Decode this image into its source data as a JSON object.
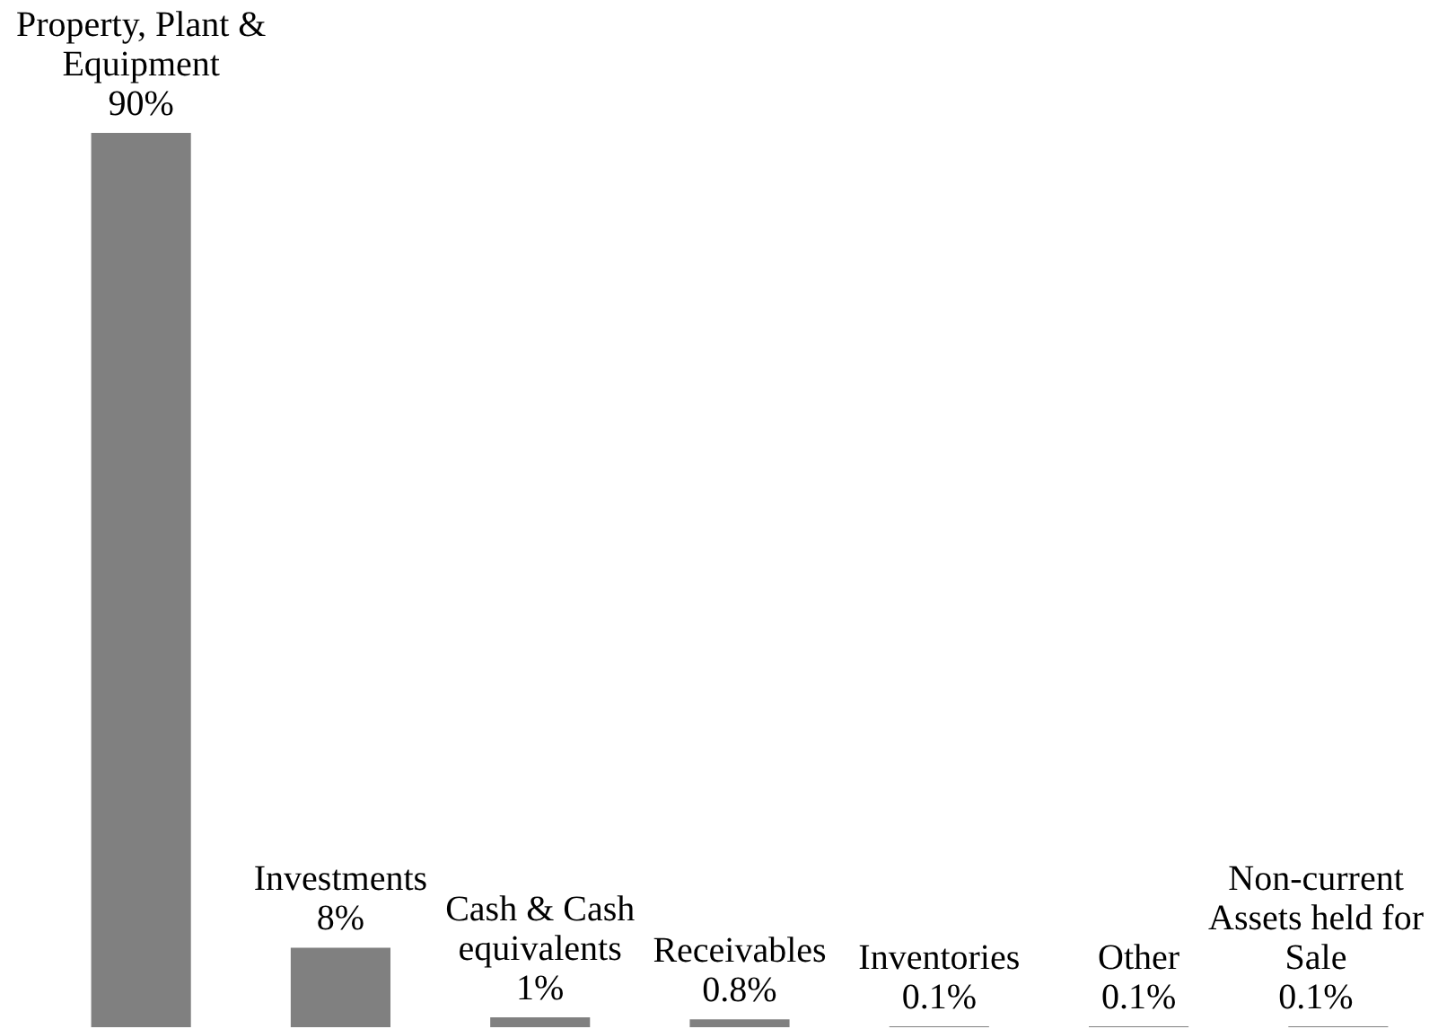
{
  "chart_data": {
    "type": "bar",
    "categories": [
      "Property, Plant & Equipment",
      "Investments",
      "Cash & Cash equivalents",
      "Receivables",
      "Inventories",
      "Other",
      "Non-current Assets held for Sale"
    ],
    "values": [
      90,
      8,
      1,
      0.8,
      0.1,
      0.1,
      0.1
    ],
    "color": "#808080",
    "value_labels": [
      "90%",
      "8%",
      "1%",
      "0.8%",
      "0.1%",
      "0.1%",
      "0.1%"
    ],
    "tick_labels": false
  }
}
